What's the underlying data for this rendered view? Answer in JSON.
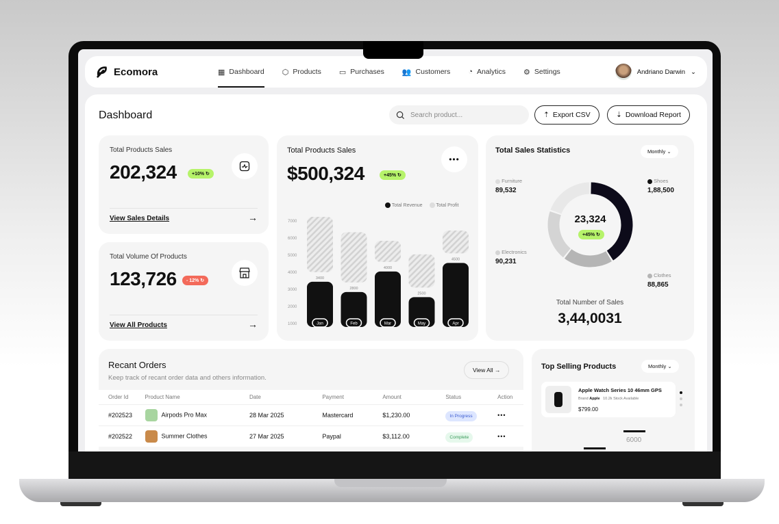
{
  "app": {
    "name": "Ecomora"
  },
  "nav": {
    "items": [
      {
        "label": "Dashboard",
        "icon": "grid-icon",
        "active": true
      },
      {
        "label": "Products",
        "icon": "box-icon"
      },
      {
        "label": "Purchases",
        "icon": "card-icon"
      },
      {
        "label": "Customers",
        "icon": "users-icon"
      },
      {
        "label": "Analytics",
        "icon": "pie-icon"
      },
      {
        "label": "Settings",
        "icon": "gear-icon"
      }
    ],
    "user": "Andriano Darwin"
  },
  "header": {
    "title": "Dashboard",
    "search_placeholder": "Search product...",
    "export": "Export CSV",
    "download": "Download Report"
  },
  "card1": {
    "title": "Total Products Sales",
    "value": "202,324",
    "badge": "+10%",
    "link": "View Sales Details",
    "badge_color": "#b6f36a"
  },
  "card2": {
    "title": "Total Volume Of Products",
    "value": "123,726",
    "badge": "- 12%",
    "link": "View All Products",
    "badge_color": "#f36a5a"
  },
  "sales_card": {
    "title": "Total Products Sales",
    "value": "$500,324",
    "badge": "+45%"
  },
  "chart_data": [
    {
      "type": "bar",
      "categories": [
        "Jan",
        "Feb",
        "Mar",
        "May",
        "Apr"
      ],
      "ylim": [
        1000,
        7000
      ],
      "yticks": [
        1000,
        2000,
        3000,
        4000,
        5000,
        6000,
        7000
      ],
      "series": [
        {
          "name": "Total Revenue",
          "values": [
            3400,
            2800,
            4000,
            2500,
            4500
          ],
          "color": "#111111"
        },
        {
          "name": "Total Profit",
          "values": [
            7200,
            6300,
            5800,
            5000,
            6400
          ],
          "color": "#d9d9d9"
        }
      ]
    },
    {
      "type": "pie",
      "title": "Total Sales Statistics",
      "filter": "Monthly",
      "center_value": "23,324",
      "center_badge": "+45%",
      "slices": [
        {
          "label": "Shoes",
          "display": "1,88,500",
          "value": 188500,
          "color": "#0d0b1a"
        },
        {
          "label": "Clothes",
          "display": "88,865",
          "value": 88865,
          "color": "#b5b5b5"
        },
        {
          "label": "Electronics",
          "display": "90,231",
          "value": 90231,
          "color": "#d4d4d4"
        },
        {
          "label": "Furniture",
          "display": "89,532",
          "value": 89532,
          "color": "#e8e8e8"
        }
      ],
      "footer_label": "Total Number of Sales",
      "footer_value": "3,44,0031"
    }
  ],
  "orders": {
    "title": "Recant Orders",
    "subtitle": "Keep track of recant order data and others information.",
    "view_all": "View All",
    "columns": [
      "Order Id",
      "Product Name",
      "Date",
      "Payment",
      "Amount",
      "Status",
      "Action"
    ],
    "rows": [
      {
        "id": "#202523",
        "product": "Airpods Pro Max",
        "date": "28 Mar 2025",
        "payment": "Mastercard",
        "amount": "$1,230.00",
        "status": "In Progress"
      },
      {
        "id": "#202522",
        "product": "Summer Clothes",
        "date": "27 Mar 2025",
        "payment": "Paypal",
        "amount": "$3,112.00",
        "status": "Complete"
      }
    ]
  },
  "top": {
    "title": "Top Selling Products",
    "filter": "Monthly",
    "product": "Apple Watch Series 10 46mm GPS",
    "brand_label": "Brand",
    "brand": "Apple",
    "stock": "10.2k Stock Available",
    "price": "$799.00",
    "picker_value": "6000"
  }
}
